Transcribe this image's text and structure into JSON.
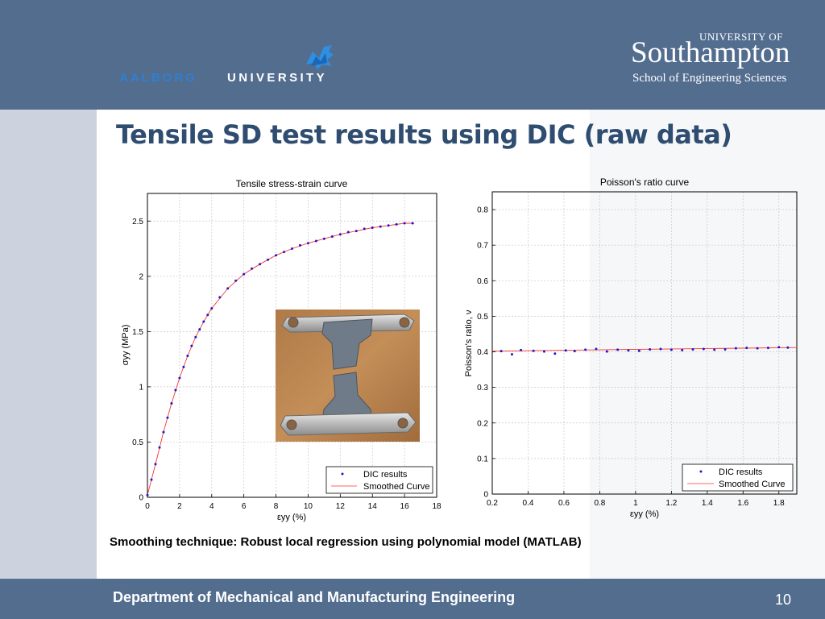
{
  "header": {
    "aalborg_word": "AALBORG",
    "aalborg_word2": "UNIVERSITY",
    "southampton_top": "UNIVERSITY OF",
    "southampton_main": "Southampton",
    "southampton_school": "School of Engineering Sciences"
  },
  "slide": {
    "title": "Tensile SD test results using DIC (raw data)",
    "caption": "Smoothing technique: Robust local regression using polynomial model (MATLAB)"
  },
  "footer": {
    "department": "Department of Mechanical and Manufacturing Engineering",
    "page_number": "10"
  },
  "colors": {
    "header_bg": "#536d8f",
    "title_text": "#2f4d70",
    "dic_points": "#1a1acc",
    "smoothed_curve": "#ff3333"
  },
  "chart_data": [
    {
      "type": "scatter",
      "title": "Tensile stress-strain curve",
      "xlabel": "εyy (%)",
      "ylabel": "σyy (MPa)",
      "xlim": [
        0,
        18
      ],
      "ylim": [
        0,
        2.75
      ],
      "xticks": [
        0,
        2,
        4,
        6,
        8,
        10,
        12,
        14,
        16,
        18
      ],
      "yticks": [
        0,
        0.5,
        1,
        1.5,
        2,
        2.5
      ],
      "grid": true,
      "legend_position": "bottom-right",
      "series": [
        {
          "name": "DIC results",
          "style": "points",
          "x": [
            0,
            0.25,
            0.5,
            0.75,
            1,
            1.25,
            1.5,
            1.75,
            2,
            2.25,
            2.5,
            2.75,
            3,
            3.25,
            3.5,
            3.75,
            4,
            4.5,
            5,
            5.5,
            6,
            6.5,
            7,
            7.5,
            8,
            8.5,
            9,
            9.5,
            10,
            10.5,
            11,
            11.5,
            12,
            12.5,
            13,
            13.5,
            14,
            14.5,
            15,
            15.5,
            16,
            16.5
          ],
          "y": [
            0.02,
            0.16,
            0.3,
            0.45,
            0.59,
            0.72,
            0.85,
            0.97,
            1.08,
            1.18,
            1.28,
            1.37,
            1.45,
            1.52,
            1.59,
            1.65,
            1.71,
            1.81,
            1.89,
            1.96,
            2.02,
            2.07,
            2.11,
            2.15,
            2.19,
            2.22,
            2.25,
            2.28,
            2.3,
            2.32,
            2.34,
            2.36,
            2.38,
            2.4,
            2.41,
            2.43,
            2.44,
            2.45,
            2.46,
            2.47,
            2.48,
            2.48
          ]
        },
        {
          "name": "Smoothed Curve",
          "style": "line",
          "x": [
            0,
            0.5,
            1,
            1.5,
            2,
            2.5,
            3,
            3.5,
            4,
            5,
            6,
            7,
            8,
            9,
            10,
            11,
            12,
            13,
            14,
            15,
            16,
            16.6
          ],
          "y": [
            0.02,
            0.3,
            0.59,
            0.85,
            1.08,
            1.28,
            1.45,
            1.59,
            1.71,
            1.89,
            2.02,
            2.11,
            2.19,
            2.25,
            2.3,
            2.34,
            2.38,
            2.41,
            2.44,
            2.46,
            2.48,
            2.48
          ]
        }
      ]
    },
    {
      "type": "scatter",
      "title": "Poisson's ratio curve",
      "xlabel": "εyy (%)",
      "ylabel": "Poisson's ratio, ν",
      "xlim": [
        0.2,
        1.9
      ],
      "ylim": [
        0,
        0.85
      ],
      "xticks": [
        0.2,
        0.4,
        0.6,
        0.8,
        1,
        1.2,
        1.4,
        1.6,
        1.8
      ],
      "yticks": [
        0,
        0.1,
        0.2,
        0.3,
        0.4,
        0.5,
        0.6,
        0.7,
        0.8
      ],
      "grid": true,
      "legend_position": "bottom-right",
      "series": [
        {
          "name": "DIC results",
          "style": "points",
          "x": [
            0.25,
            0.31,
            0.36,
            0.43,
            0.49,
            0.55,
            0.61,
            0.66,
            0.72,
            0.78,
            0.84,
            0.9,
            0.96,
            1.02,
            1.08,
            1.14,
            1.2,
            1.26,
            1.32,
            1.38,
            1.44,
            1.5,
            1.56,
            1.62,
            1.68,
            1.74,
            1.8,
            1.85
          ],
          "y": [
            0.402,
            0.393,
            0.405,
            0.403,
            0.401,
            0.395,
            0.404,
            0.402,
            0.406,
            0.408,
            0.401,
            0.406,
            0.404,
            0.403,
            0.407,
            0.408,
            0.406,
            0.405,
            0.407,
            0.408,
            0.406,
            0.407,
            0.41,
            0.411,
            0.41,
            0.411,
            0.413,
            0.412
          ]
        },
        {
          "name": "Smoothed Curve",
          "style": "line",
          "x": [
            0.2,
            1.9
          ],
          "y": [
            0.402,
            0.412
          ]
        }
      ]
    }
  ]
}
